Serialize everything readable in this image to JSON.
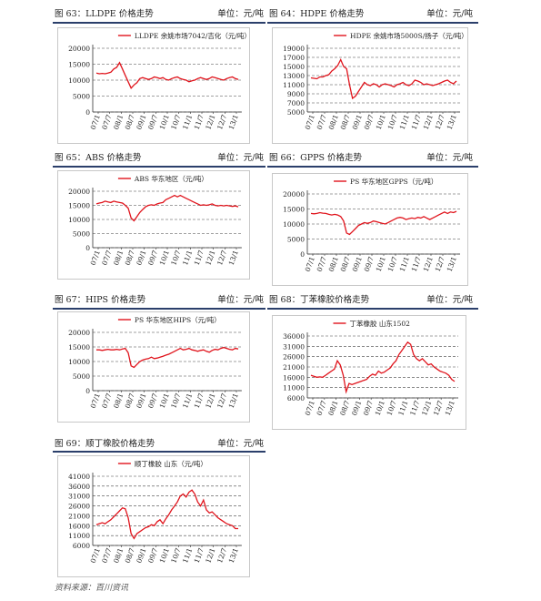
{
  "charts": [
    {
      "title": "图 63：LLDPE 价格走势",
      "unit": "单位：元/吨",
      "chart_data": {
        "type": "line",
        "yticks": [
          0,
          5000,
          10000,
          15000,
          20000
        ],
        "ylim": [
          0,
          20000
        ],
        "xticks": [
          "07/1",
          "07/7",
          "08/1",
          "08/7",
          "09/1",
          "09/7",
          "10/1",
          "10/7",
          "11/1",
          "11/7",
          "12/1",
          "12/7",
          "13/1"
        ],
        "series": [
          {
            "name": "LLDPE 余姚市场7042/吉化（元/吨）",
            "values": [
              12200,
              12000,
              12100,
              12000,
              12200,
              12500,
              13500,
              14000,
              15500,
              13500,
              11500,
              9500,
              7500,
              8500,
              9200,
              10500,
              10800,
              10500,
              10200,
              10500,
              11000,
              10800,
              10500,
              10800,
              10200,
              10000,
              10500,
              10800,
              11000,
              10500,
              10200,
              10000,
              9500,
              9800,
              10000,
              10500,
              10800,
              10500,
              10200,
              10500,
              11000,
              10800,
              10500,
              10200,
              10000,
              10500,
              10800,
              11000,
              10500,
              10200
            ]
          }
        ]
      }
    },
    {
      "title": "图 64：HDPE 价格走势",
      "unit": "单位：元/吨",
      "chart_data": {
        "type": "line",
        "yticks": [
          5000,
          7000,
          9000,
          11000,
          13000,
          15000,
          17000,
          19000
        ],
        "ylim": [
          5000,
          19000
        ],
        "xticks": [
          "07/1",
          "07/7",
          "08/1",
          "08/7",
          "09/1",
          "09/7",
          "10/1",
          "10/7",
          "11/1",
          "11/7",
          "12/1",
          "12/7",
          "13/1"
        ],
        "series": [
          {
            "name": "HDPE 余姚市场5000S/扬子（元/吨）",
            "values": [
              12500,
              12400,
              12300,
              12700,
              12700,
              13000,
              13200,
              14000,
              14500,
              15200,
              16500,
              15000,
              14500,
              11000,
              8000,
              8500,
              9500,
              10500,
              11500,
              11000,
              10800,
              11200,
              11000,
              10500,
              11000,
              11200,
              11000,
              10800,
              10500,
              11000,
              11200,
              11500,
              11000,
              10800,
              11200,
              12000,
              11800,
              11500,
              11000,
              11200,
              11000,
              10800,
              11000,
              11200,
              11500,
              11800,
              12000,
              11500,
              11200,
              11800
            ]
          }
        ]
      }
    },
    {
      "title": "图 65：ABS 价格走势",
      "unit": "单位：元/吨",
      "chart_data": {
        "type": "line",
        "yticks": [
          0,
          5000,
          10000,
          15000,
          20000
        ],
        "ylim": [
          0,
          20000
        ],
        "xticks": [
          "07/1",
          "07/7",
          "08/1",
          "08/7",
          "09/1",
          "09/7",
          "10/1",
          "10/7",
          "11/1",
          "11/7",
          "12/1",
          "12/7",
          "13/1"
        ],
        "series": [
          {
            "name": "ABS 华东地区（元/吨）",
            "values": [
              15500,
              15800,
              16000,
              16500,
              16200,
              16000,
              16500,
              16200,
              16000,
              15800,
              15000,
              14000,
              10500,
              9500,
              11000,
              12500,
              13500,
              14500,
              15000,
              15200,
              15000,
              15500,
              15800,
              16000,
              17000,
              17500,
              18000,
              18500,
              18000,
              18500,
              18000,
              17500,
              17000,
              16500,
              16000,
              15500,
              15000,
              15200,
              15000,
              15200,
              15500,
              15000,
              14800,
              15000,
              14800,
              15000,
              14800,
              14600,
              14800,
              14500
            ]
          }
        ]
      }
    },
    {
      "title": "图 66：GPPS 价格走势",
      "unit": "单位：元/吨",
      "chart_data": {
        "type": "line",
        "yticks": [
          0,
          5000,
          10000,
          15000,
          20000
        ],
        "ylim": [
          0,
          20000
        ],
        "xticks": [
          "07/1",
          "07/7",
          "08/1",
          "08/7",
          "09/1",
          "09/7",
          "10/1",
          "10/7",
          "11/1",
          "11/7",
          "12/1",
          "12/7",
          "13/1"
        ],
        "series": [
          {
            "name": "PS 华东地区GPPS（元/吨）",
            "values": [
              13500,
              13400,
              13500,
              13800,
              13600,
              13500,
              13200,
              13000,
              13200,
              13000,
              12500,
              11000,
              7000,
              6500,
              7500,
              8500,
              9500,
              10000,
              10500,
              10200,
              10500,
              11000,
              10800,
              10500,
              10200,
              10000,
              10500,
              11000,
              11500,
              12000,
              12200,
              12000,
              11500,
              11800,
              12000,
              11800,
              12200,
              12000,
              12500,
              12000,
              11500,
              12000,
              12500,
              13000,
              13500,
              14000,
              13500,
              14000,
              13800,
              14200
            ]
          }
        ]
      }
    },
    {
      "title": "图 67：HIPS 价格走势",
      "unit": "单位：元/吨",
      "chart_data": {
        "type": "line",
        "yticks": [
          0,
          5000,
          10000,
          15000,
          20000
        ],
        "ylim": [
          0,
          20000
        ],
        "xticks": [
          "07/1",
          "07/7",
          "08/1",
          "08/7",
          "09/1",
          "09/7",
          "10/1",
          "10/7",
          "11/1",
          "11/7",
          "12/1",
          "12/7",
          "13/1"
        ],
        "series": [
          {
            "name": "PS 华东地区HIPS（元/吨）",
            "values": [
              14000,
              14000,
              13800,
              14000,
              14200,
              14000,
              14000,
              14200,
              14000,
              14300,
              14500,
              13000,
              8500,
              8000,
              9000,
              10000,
              10500,
              10800,
              11000,
              11500,
              11000,
              11200,
              11500,
              11800,
              12200,
              12500,
              13000,
              13500,
              14000,
              14500,
              14000,
              14200,
              14500,
              14000,
              13800,
              13500,
              13800,
              14000,
              13500,
              13200,
              13800,
              14200,
              14000,
              14500,
              14800,
              14500,
              14200,
              14000,
              14500,
              14300
            ]
          }
        ]
      }
    },
    {
      "title": "图 68：丁苯橡胶价格走势",
      "unit": "单位：元/吨",
      "chart_data": {
        "type": "line",
        "yticks": [
          6000,
          11000,
          16000,
          21000,
          26000,
          31000,
          36000
        ],
        "ylim": [
          6000,
          36000
        ],
        "xticks": [
          "07/1",
          "07/7",
          "08/1",
          "08/7",
          "09/1",
          "09/7",
          "10/1",
          "10/7",
          "11/1",
          "11/7",
          "12/1",
          "12/7",
          "13/1"
        ],
        "series": [
          {
            "name": "丁苯橡胶 山东1502",
            "values": [
              17000,
              16500,
              16000,
              16200,
              16000,
              17000,
              18000,
              19000,
              20000,
              24000,
              22000,
              17000,
              9000,
              13000,
              12500,
              13000,
              13500,
              14000,
              14500,
              15000,
              16500,
              17500,
              17000,
              19000,
              18000,
              18500,
              19500,
              20500,
              22500,
              24000,
              27000,
              29000,
              31000,
              33000,
              32000,
              27000,
              25000,
              24000,
              25000,
              23500,
              22000,
              22500,
              21000,
              20000,
              19000,
              18500,
              18000,
              17000,
              15000,
              14000
            ]
          }
        ]
      }
    },
    {
      "title": "图 69：顺丁橡胶价格走势",
      "unit": "单位：元/吨",
      "chart_data": {
        "type": "line",
        "yticks": [
          6000,
          11000,
          16000,
          21000,
          26000,
          31000,
          36000,
          41000
        ],
        "ylim": [
          6000,
          41000
        ],
        "xticks": [
          "07/1",
          "07/7",
          "08/1",
          "08/7",
          "09/1",
          "09/7",
          "10/1",
          "10/7",
          "11/1",
          "11/7",
          "12/1",
          "12/7",
          "13/1"
        ],
        "series": [
          {
            "name": "顺丁橡胶 山东（元/吨）",
            "values": [
              16500,
              17000,
              17500,
              17000,
              18000,
              19000,
              20500,
              22000,
              23500,
              25000,
              24500,
              20000,
              12000,
              9500,
              12000,
              13000,
              14000,
              15000,
              15500,
              16500,
              16000,
              18000,
              19000,
              17000,
              19500,
              21500,
              24000,
              26000,
              28000,
              31000,
              32000,
              30500,
              33000,
              34000,
              32000,
              28000,
              26000,
              29000,
              24000,
              22500,
              23000,
              21500,
              20000,
              19000,
              18000,
              17000,
              16500,
              16000,
              14500,
              14500
            ]
          }
        ]
      }
    }
  ],
  "source": "资料来源：百川资讯"
}
